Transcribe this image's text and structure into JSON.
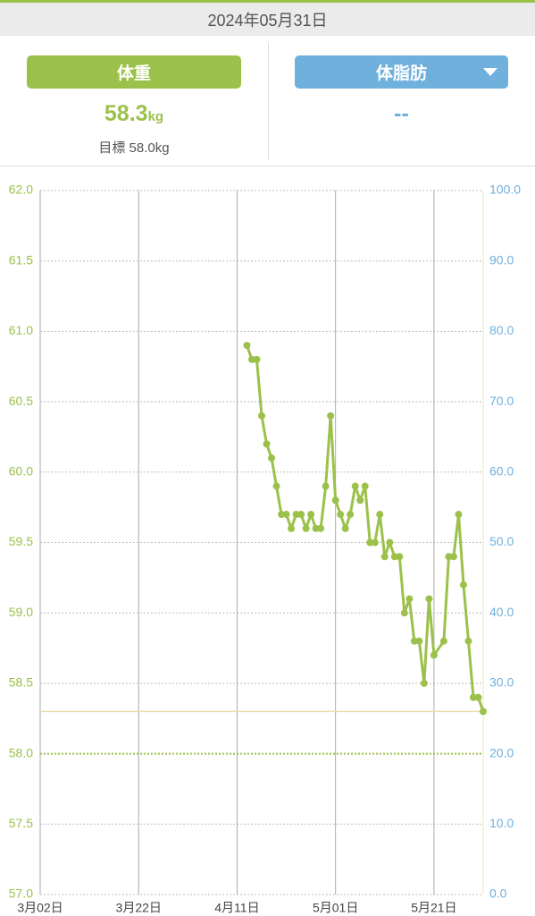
{
  "header": {
    "date": "2024年05月31日"
  },
  "tabs": {
    "weight": "体重",
    "fat": "体脂肪"
  },
  "summary": {
    "weight_value": "58.3",
    "weight_unit": "kg",
    "goal": "目標 58.0kg",
    "fat_value": "--"
  },
  "chart_data": {
    "type": "line",
    "x": [
      "04-13",
      "04-14",
      "04-15",
      "04-16",
      "04-17",
      "04-18",
      "04-19",
      "04-20",
      "04-21",
      "04-22",
      "04-23",
      "04-24",
      "04-25",
      "04-26",
      "04-27",
      "04-28",
      "04-29",
      "04-30",
      "05-01",
      "05-02",
      "05-03",
      "05-04",
      "05-05",
      "05-06",
      "05-07",
      "05-08",
      "05-09",
      "05-10",
      "05-11",
      "05-12",
      "05-13",
      "05-14",
      "05-15",
      "05-16",
      "05-17",
      "05-18",
      "05-19",
      "05-20",
      "05-21",
      "05-23",
      "05-24",
      "05-25",
      "05-26",
      "05-27",
      "05-28",
      "05-29",
      "05-30",
      "05-31"
    ],
    "series": [
      {
        "color": "#9bc14a",
        "values": [
          60.9,
          60.8,
          60.8,
          60.4,
          60.2,
          60.1,
          59.9,
          59.7,
          59.7,
          59.6,
          59.7,
          59.7,
          59.6,
          59.7,
          59.6,
          59.6,
          59.9,
          60.4,
          59.8,
          59.7,
          59.6,
          59.7,
          59.9,
          59.8,
          59.9,
          59.5,
          59.5,
          59.7,
          59.4,
          59.5,
          59.4,
          59.4,
          59.0,
          59.1,
          58.8,
          58.8,
          58.5,
          59.1,
          58.7,
          58.8,
          59.4,
          59.4,
          59.7,
          59.2,
          58.8,
          58.4,
          58.4,
          58.3
        ]
      }
    ],
    "xlim": [
      "03-02",
      "05-31"
    ],
    "xticks": [
      {
        "value": "03-02",
        "label": "3月02日"
      },
      {
        "value": "03-22",
        "label": "3月22日"
      },
      {
        "value": "04-11",
        "label": "4月11日"
      },
      {
        "value": "05-01",
        "label": "5月01日"
      },
      {
        "value": "05-21",
        "label": "5月21日"
      }
    ],
    "ylim": [
      57,
      62
    ],
    "yticks": [
      {
        "value": 57,
        "label": "57.0"
      },
      {
        "value": 57.5,
        "label": "57.5"
      },
      {
        "value": 58,
        "label": "58.0"
      },
      {
        "value": 58.5,
        "label": "58.5"
      },
      {
        "value": 59,
        "label": "59.0"
      },
      {
        "value": 59.5,
        "label": "59.5"
      },
      {
        "value": 60,
        "label": "60.0"
      },
      {
        "value": 60.5,
        "label": "60.5"
      },
      {
        "value": 61,
        "label": "61.0"
      },
      {
        "value": 61.5,
        "label": "61.5"
      },
      {
        "value": 62,
        "label": "62.0"
      }
    ],
    "y2lim": [
      0,
      100
    ],
    "y2ticks": [
      {
        "value": 0,
        "label": "0.0"
      },
      {
        "value": 10,
        "label": "10.0"
      },
      {
        "value": 20,
        "label": "20.0"
      },
      {
        "value": 30,
        "label": "30.0"
      },
      {
        "value": 40,
        "label": "40.0"
      },
      {
        "value": 50,
        "label": "50.0"
      },
      {
        "value": 60,
        "label": "60.0"
      },
      {
        "value": 70,
        "label": "70.0"
      },
      {
        "value": 80,
        "label": "80.0"
      },
      {
        "value": 90,
        "label": "90.0"
      },
      {
        "value": 100,
        "label": "100.0"
      }
    ],
    "target": 58.0,
    "current": 58.3,
    "grid": true,
    "y_color": "#9bc14a",
    "y2_color": "#6fb0dc"
  }
}
